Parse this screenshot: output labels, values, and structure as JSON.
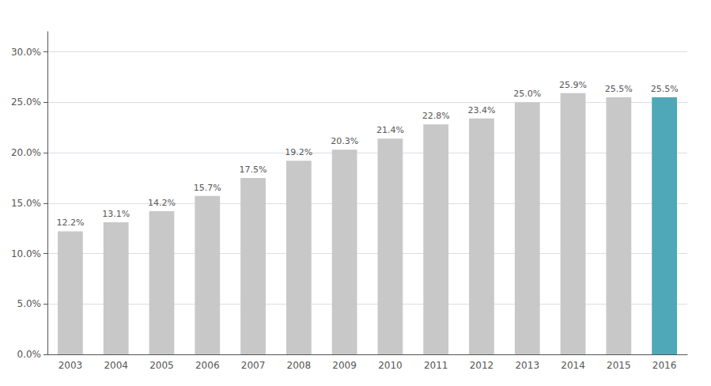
{
  "chart_data": {
    "type": "bar",
    "categories": [
      "2003",
      "2004",
      "2005",
      "2006",
      "2007",
      "2008",
      "2009",
      "2010",
      "2011",
      "2012",
      "2013",
      "2014",
      "2015",
      "2016"
    ],
    "values": [
      12.2,
      13.1,
      14.2,
      15.7,
      17.5,
      19.2,
      20.3,
      21.4,
      22.8,
      23.4,
      25.0,
      25.9,
      25.5,
      25.5
    ],
    "value_labels": [
      "12.2%",
      "13.1%",
      "14.2%",
      "15.7%",
      "17.5%",
      "19.2%",
      "20.3%",
      "21.4%",
      "22.8%",
      "23.4%",
      "25.0%",
      "25.9%",
      "25.5%",
      "25.5%"
    ],
    "colors": [
      "#c8c8c8",
      "#c8c8c8",
      "#c8c8c8",
      "#c8c8c8",
      "#c8c8c8",
      "#c8c8c8",
      "#c8c8c8",
      "#c8c8c8",
      "#c8c8c8",
      "#c8c8c8",
      "#c8c8c8",
      "#c8c8c8",
      "#c8c8c8",
      "#4ea8b8"
    ],
    "ylim": [
      0,
      32
    ],
    "yticks": [
      {
        "value": 0,
        "label": "0.0%"
      },
      {
        "value": 5,
        "label": "5.0%"
      },
      {
        "value": 10,
        "label": "10.0%"
      },
      {
        "value": 15,
        "label": "15.0%"
      },
      {
        "value": 20,
        "label": "20.0%"
      },
      {
        "value": 25,
        "label": "25.0%"
      },
      {
        "value": 30,
        "label": "30.0%"
      }
    ],
    "grid": true,
    "data_labels": true
  }
}
